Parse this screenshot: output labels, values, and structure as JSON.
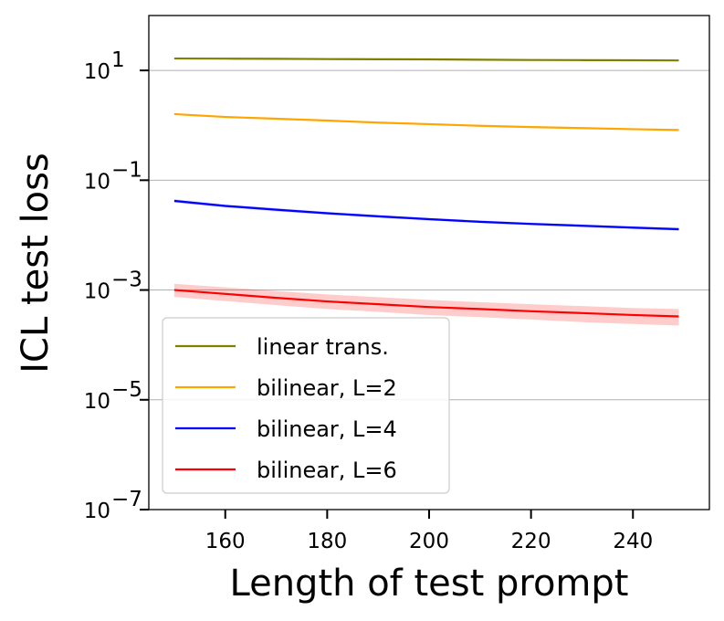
{
  "chart_data": {
    "type": "line",
    "title": "",
    "xlabel": "Length of test prompt",
    "ylabel": "ICL test loss",
    "yscale": "log",
    "xlim": [
      145,
      255
    ],
    "ylim": [
      1e-07,
      100
    ],
    "xticks": [
      160,
      180,
      200,
      220,
      240
    ],
    "yticks": [
      {
        "value": 10,
        "base": "10",
        "exp": "1"
      },
      {
        "value": 0.1,
        "base": "10",
        "exp": "−1"
      },
      {
        "value": 0.001,
        "base": "10",
        "exp": "−3"
      },
      {
        "value": 1e-05,
        "base": "10",
        "exp": "−5"
      },
      {
        "value": 1e-07,
        "base": "10",
        "exp": "−7"
      }
    ],
    "grid": "horizontal",
    "legend": "lower-left",
    "x": [
      150,
      160,
      170,
      180,
      190,
      200,
      210,
      220,
      230,
      240,
      249
    ],
    "series": [
      {
        "name": "linear trans.",
        "color": "#808000",
        "values": [
          16.5,
          16.4,
          16.3,
          16.1,
          16.0,
          15.9,
          15.7,
          15.5,
          15.4,
          15.3,
          15.2
        ],
        "lower": [
          16.2,
          16.1,
          16.0,
          15.8,
          15.7,
          15.6,
          15.4,
          15.2,
          15.1,
          15.0,
          14.9
        ],
        "upper": [
          16.8,
          16.7,
          16.6,
          16.4,
          16.3,
          16.2,
          16.0,
          15.8,
          15.7,
          15.6,
          15.5
        ]
      },
      {
        "name": "bilinear, L=2",
        "color": "#FFA500",
        "values": [
          1.6,
          1.42,
          1.32,
          1.22,
          1.12,
          1.05,
          0.98,
          0.93,
          0.89,
          0.85,
          0.82
        ],
        "lower": [
          1.55,
          1.38,
          1.28,
          1.18,
          1.08,
          1.01,
          0.95,
          0.9,
          0.86,
          0.82,
          0.79
        ],
        "upper": [
          1.65,
          1.46,
          1.36,
          1.26,
          1.16,
          1.09,
          1.01,
          0.96,
          0.92,
          0.88,
          0.85
        ]
      },
      {
        "name": "bilinear, L=4",
        "color": "#0000FF",
        "values": [
          0.042,
          0.034,
          0.029,
          0.025,
          0.022,
          0.0195,
          0.0175,
          0.016,
          0.0148,
          0.0137,
          0.0128
        ],
        "lower": [
          0.039,
          0.032,
          0.027,
          0.0235,
          0.0207,
          0.0184,
          0.0165,
          0.0151,
          0.0139,
          0.0129,
          0.012
        ],
        "upper": [
          0.045,
          0.036,
          0.031,
          0.0265,
          0.0233,
          0.0206,
          0.0185,
          0.0169,
          0.0157,
          0.0145,
          0.0136
        ]
      },
      {
        "name": "bilinear, L=6",
        "color": "#FF0000",
        "values": [
          0.001,
          0.00085,
          0.00072,
          0.00062,
          0.00055,
          0.00049,
          0.00045,
          0.00041,
          0.00038,
          0.00035,
          0.00033
        ],
        "lower": [
          0.00075,
          0.00063,
          0.00053,
          0.00045,
          0.0004,
          0.00035,
          0.00032,
          0.00029,
          0.00026,
          0.00024,
          0.000225
        ],
        "upper": [
          0.0013,
          0.00112,
          0.00096,
          0.00083,
          0.00074,
          0.00066,
          0.0006,
          0.00055,
          0.00051,
          0.00047,
          0.00045
        ]
      }
    ]
  }
}
